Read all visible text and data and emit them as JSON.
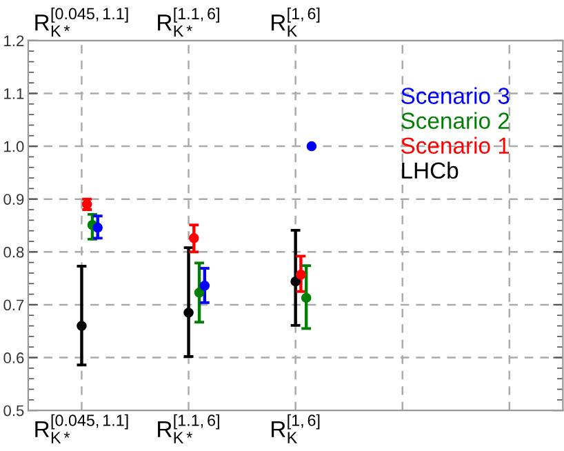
{
  "chart_data": {
    "type": "scatter",
    "categories": [
      "R$^{[0.045,1.1]}$$_{K*}$",
      "R$^{[1.1,6]}$$_{K*}$",
      "R$^{[1,6]}$$_{K}$",
      null,
      null
    ],
    "series": [
      {
        "name": "LHCb",
        "color": "#000000",
        "values": [
          0.66,
          0.685,
          0.744,
          null,
          null
        ],
        "errors": [
          [
            0.586,
            0.773
          ],
          [
            0.602,
            0.808
          ],
          [
            0.661,
            0.841
          ],
          null,
          null
        ]
      },
      {
        "name": "Scenario 1",
        "color": "#ff0000",
        "values": [
          0.89,
          0.826,
          0.757,
          null,
          null
        ],
        "errors": [
          [
            0.88,
            0.9
          ],
          [
            0.8,
            0.851
          ],
          [
            0.725,
            0.792
          ],
          null,
          null
        ]
      },
      {
        "name": "Scenario 2",
        "color": "#008000",
        "values": [
          0.851,
          0.723,
          0.713,
          null,
          null
        ],
        "errors": [
          [
            0.824,
            0.871
          ],
          [
            0.667,
            0.779
          ],
          [
            0.655,
            0.774
          ],
          null,
          null
        ]
      },
      {
        "name": "Scenario 3",
        "color": "#0000ff",
        "values": [
          0.846,
          0.736,
          1.0,
          null,
          null
        ],
        "errors": [
          [
            0.826,
            0.868
          ],
          [
            0.704,
            0.769
          ],
          null,
          null,
          null
        ]
      }
    ],
    "ylim": [
      0.5,
      1.2
    ],
    "yticks": [
      {
        "value": 0.5,
        "label": "0.5"
      },
      {
        "value": 0.6,
        "label": "0.6"
      },
      {
        "value": 0.7,
        "label": "0.7"
      },
      {
        "value": 0.8,
        "label": "0.8"
      },
      {
        "value": 0.9,
        "label": "0.9"
      },
      {
        "value": 1.0,
        "label": "1.0"
      },
      {
        "value": 1.1,
        "label": "1.1"
      },
      {
        "value": 1.2,
        "label": "1.2"
      }
    ],
    "grid": true,
    "legend": "top right",
    "marker": "circle"
  }
}
